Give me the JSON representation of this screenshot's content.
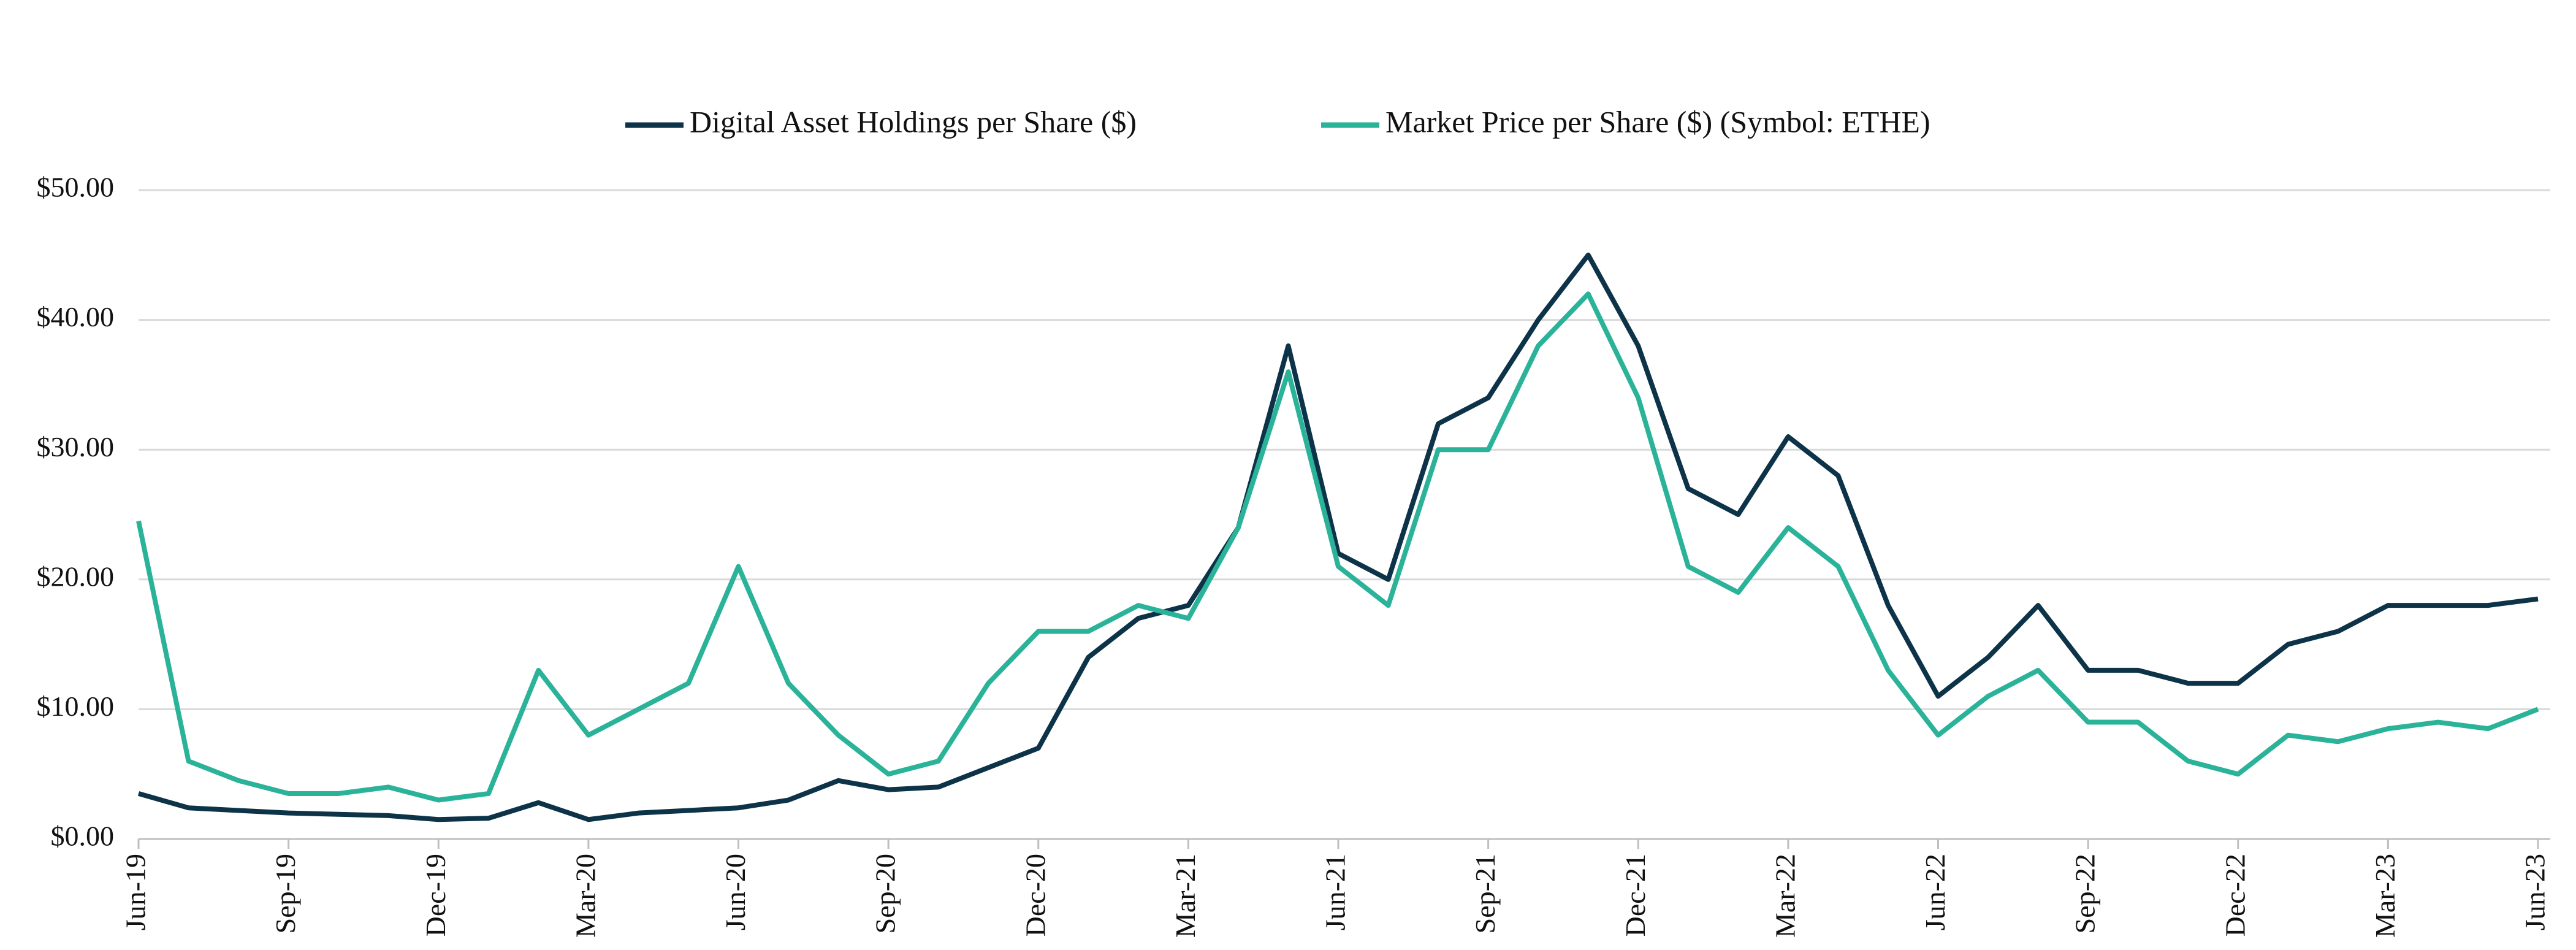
{
  "chart_data": {
    "type": "line",
    "categories": [
      "Jun-19",
      null,
      null,
      "Sep-19",
      null,
      null,
      "Dec-19",
      null,
      null,
      "Mar-20",
      null,
      null,
      "Jun-20",
      null,
      null,
      "Sep-20",
      null,
      null,
      "Dec-20",
      null,
      null,
      "Mar-21",
      null,
      null,
      "Jun-21",
      null,
      null,
      "Sep-21",
      null,
      null,
      "Dec-21",
      null,
      null,
      "Mar-22",
      null,
      null,
      "Jun-22",
      null,
      null,
      "Sep-22",
      null,
      null,
      "Dec-22",
      null,
      null,
      "Mar-23",
      null,
      null,
      "Jun-23"
    ],
    "series": [
      {
        "name": "Digital Asset Holdings per Share ($)",
        "color": "#0d3349",
        "values": [
          3.5,
          2.4,
          2.2,
          2.0,
          1.9,
          1.8,
          1.5,
          1.6,
          2.8,
          1.5,
          2.0,
          2.2,
          2.4,
          3.0,
          4.5,
          3.8,
          4.0,
          5.5,
          7,
          14,
          17,
          18,
          24,
          38,
          22,
          20,
          32,
          34,
          40,
          45,
          38,
          27,
          25,
          31,
          28,
          18,
          11,
          14,
          18,
          13,
          13,
          12,
          12,
          15,
          16,
          18,
          18,
          18,
          18.5
        ]
      },
      {
        "name": "Market Price per Share ($) (Symbol: ETHE)",
        "color": "#2bb39a",
        "values": [
          24.5,
          6,
          4.5,
          3.5,
          3.5,
          4,
          3,
          3.5,
          13,
          8,
          10,
          12,
          21,
          12,
          8,
          5,
          6,
          12,
          16,
          16,
          18,
          17,
          24,
          36,
          21,
          18,
          30,
          30,
          38,
          42,
          34,
          21,
          19,
          24,
          21,
          13,
          8,
          11,
          13,
          9,
          9,
          6,
          5,
          8,
          7.5,
          8.5,
          9,
          8.5,
          10
        ]
      }
    ],
    "ylim": [
      0,
      50
    ],
    "yticks": [
      {
        "value": 0,
        "label": "$0.00"
      },
      {
        "value": 10,
        "label": "$10.00"
      },
      {
        "value": 20,
        "label": "$20.00"
      },
      {
        "value": 30,
        "label": "$30.00"
      },
      {
        "value": 40,
        "label": "$40.00"
      },
      {
        "value": 50,
        "label": "$50.00"
      }
    ],
    "grid": true,
    "legend": "top"
  }
}
